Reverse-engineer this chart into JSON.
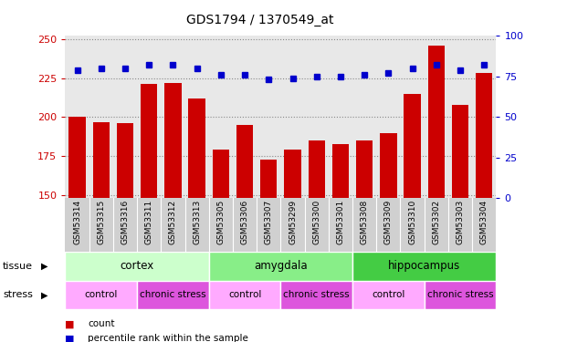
{
  "title": "GDS1794 / 1370549_at",
  "samples": [
    "GSM53314",
    "GSM53315",
    "GSM53316",
    "GSM53311",
    "GSM53312",
    "GSM53313",
    "GSM53305",
    "GSM53306",
    "GSM53307",
    "GSM53299",
    "GSM53300",
    "GSM53301",
    "GSM53308",
    "GSM53309",
    "GSM53310",
    "GSM53302",
    "GSM53303",
    "GSM53304"
  ],
  "counts": [
    200,
    197,
    196,
    221,
    222,
    212,
    179,
    195,
    173,
    179,
    185,
    183,
    185,
    190,
    215,
    246,
    208,
    228
  ],
  "percentiles": [
    79,
    80,
    80,
    82,
    82,
    80,
    76,
    76,
    73,
    74,
    75,
    75,
    76,
    77,
    80,
    82,
    79,
    82
  ],
  "ylim_left": [
    148,
    252
  ],
  "ylim_right": [
    0,
    100
  ],
  "yticks_left": [
    150,
    175,
    200,
    225,
    250
  ],
  "yticks_right": [
    0,
    25,
    50,
    75,
    100
  ],
  "bar_color": "#cc0000",
  "dot_color": "#0000cc",
  "grid_color": "#888888",
  "tissue_groups": [
    {
      "label": "cortex",
      "start": 0,
      "end": 6,
      "color": "#ccffcc"
    },
    {
      "label": "amygdala",
      "start": 6,
      "end": 12,
      "color": "#88ee88"
    },
    {
      "label": "hippocampus",
      "start": 12,
      "end": 18,
      "color": "#44cc44"
    }
  ],
  "stress_groups": [
    {
      "label": "control",
      "start": 0,
      "end": 3,
      "color": "#ffaaff"
    },
    {
      "label": "chronic stress",
      "start": 3,
      "end": 6,
      "color": "#dd55dd"
    },
    {
      "label": "control",
      "start": 6,
      "end": 9,
      "color": "#ffaaff"
    },
    {
      "label": "chronic stress",
      "start": 9,
      "end": 12,
      "color": "#dd55dd"
    },
    {
      "label": "control",
      "start": 12,
      "end": 15,
      "color": "#ffaaff"
    },
    {
      "label": "chronic stress",
      "start": 15,
      "end": 18,
      "color": "#dd55dd"
    }
  ],
  "left_axis_color": "#cc0000",
  "right_axis_color": "#0000cc",
  "plot_bg_color": "#e8e8e8",
  "tick_area_color": "#d0d0d0",
  "legend_items": [
    {
      "label": "count",
      "color": "#cc0000"
    },
    {
      "label": "percentile rank within the sample",
      "color": "#0000cc"
    }
  ]
}
